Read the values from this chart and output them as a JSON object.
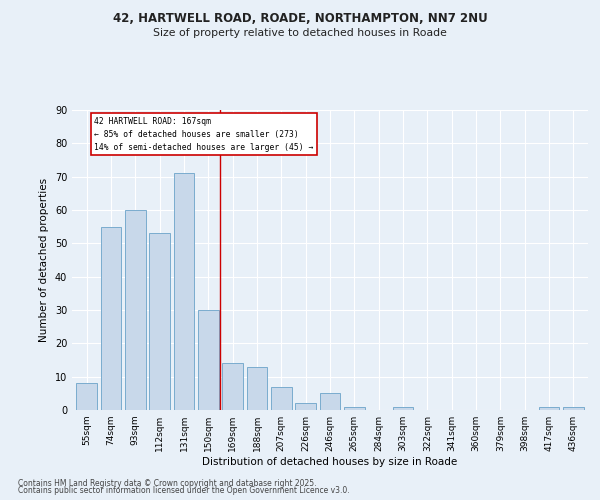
{
  "title_line1": "42, HARTWELL ROAD, ROADE, NORTHAMPTON, NN7 2NU",
  "title_line2": "Size of property relative to detached houses in Roade",
  "categories": [
    "55sqm",
    "74sqm",
    "93sqm",
    "112sqm",
    "131sqm",
    "150sqm",
    "169sqm",
    "188sqm",
    "207sqm",
    "226sqm",
    "246sqm",
    "265sqm",
    "284sqm",
    "303sqm",
    "322sqm",
    "341sqm",
    "360sqm",
    "379sqm",
    "398sqm",
    "417sqm",
    "436sqm"
  ],
  "values": [
    8,
    55,
    60,
    53,
    71,
    30,
    14,
    13,
    7,
    2,
    5,
    1,
    0,
    1,
    0,
    0,
    0,
    0,
    0,
    1,
    1
  ],
  "bar_color": "#c8d8ea",
  "bar_edge_color": "#7aacce",
  "vline_color": "#cc0000",
  "annotation_title": "42 HARTWELL ROAD: 167sqm",
  "annotation_line2": "← 85% of detached houses are smaller (273)",
  "annotation_line3": "14% of semi-detached houses are larger (45) →",
  "annotation_box_color": "#ffffff",
  "annotation_box_edge": "#cc0000",
  "xlabel": "Distribution of detached houses by size in Roade",
  "ylabel": "Number of detached properties",
  "ylim": [
    0,
    90
  ],
  "yticks": [
    0,
    10,
    20,
    30,
    40,
    50,
    60,
    70,
    80,
    90
  ],
  "bg_color": "#e8f0f8",
  "footnote1": "Contains HM Land Registry data © Crown copyright and database right 2025.",
  "footnote2": "Contains public sector information licensed under the Open Government Licence v3.0."
}
